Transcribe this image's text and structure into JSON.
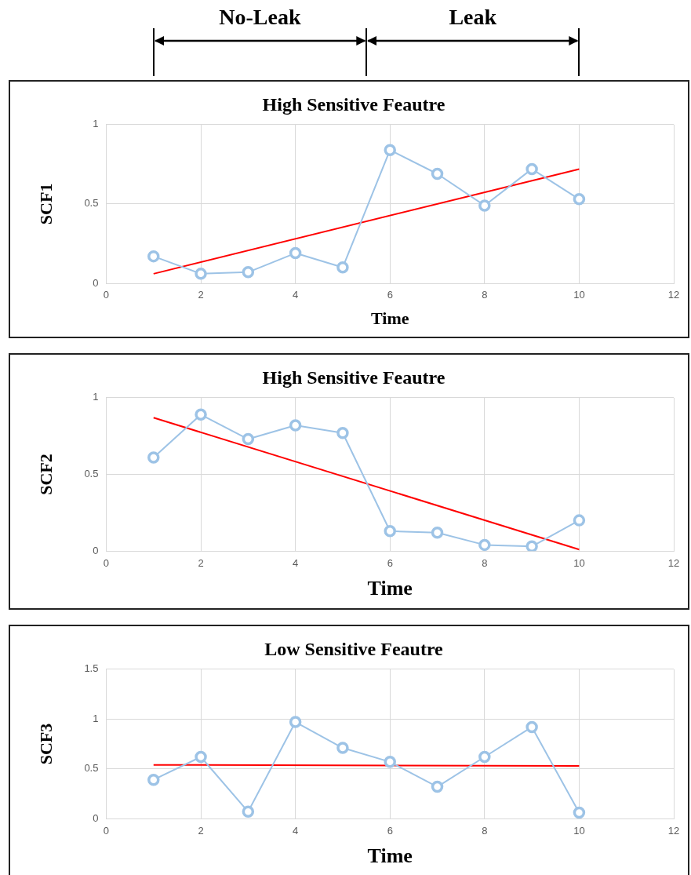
{
  "chart_data": [
    {
      "type": "line",
      "title": "High Sensitive Feautre",
      "xlabel": "Time",
      "ylabel": "SCF1",
      "annotations": [
        "No-Leak",
        "Leak"
      ],
      "xlim": [
        0,
        12
      ],
      "xticks": [
        0,
        2,
        4,
        6,
        8,
        10,
        12
      ],
      "ylim": [
        0,
        1
      ],
      "yticks": [
        0,
        0.5,
        1
      ],
      "grid": true,
      "legend": false,
      "series": [
        {
          "marker": "circle",
          "color": "#9dc3e6",
          "x": [
            1,
            2,
            3,
            4,
            5,
            6,
            7,
            8,
            9,
            10
          ],
          "values": [
            0.17,
            0.06,
            0.07,
            0.19,
            0.1,
            0.84,
            0.69,
            0.49,
            0.72,
            0.53
          ]
        },
        {
          "marker": "none",
          "color": "#ff0000",
          "x": [
            1,
            10
          ],
          "values": [
            0.06,
            0.72
          ]
        }
      ]
    },
    {
      "type": "line",
      "title": "High Sensitive Feautre",
      "xlabel": "Time",
      "ylabel": "SCF2",
      "xlim": [
        0,
        12
      ],
      "xticks": [
        0,
        2,
        4,
        6,
        8,
        10,
        12
      ],
      "ylim": [
        0,
        1
      ],
      "yticks": [
        0,
        0.5,
        1
      ],
      "grid": true,
      "legend": false,
      "series": [
        {
          "marker": "circle",
          "color": "#9dc3e6",
          "x": [
            1,
            2,
            3,
            4,
            5,
            6,
            7,
            8,
            9,
            10
          ],
          "values": [
            0.61,
            0.89,
            0.73,
            0.82,
            0.77,
            0.13,
            0.12,
            0.04,
            0.03,
            0.2
          ]
        },
        {
          "marker": "none",
          "color": "#ff0000",
          "x": [
            1,
            10
          ],
          "values": [
            0.87,
            0.01
          ]
        }
      ]
    },
    {
      "type": "line",
      "title": "Low Sensitive Feautre",
      "xlabel": "Time",
      "ylabel": "SCF3",
      "xlim": [
        0,
        12
      ],
      "xticks": [
        0,
        2,
        4,
        6,
        8,
        10,
        12
      ],
      "ylim": [
        0,
        1.5
      ],
      "yticks": [
        0,
        0.5,
        1,
        1.5
      ],
      "grid": true,
      "legend": false,
      "series": [
        {
          "marker": "circle",
          "color": "#9dc3e6",
          "x": [
            1,
            2,
            3,
            4,
            5,
            6,
            7,
            8,
            9,
            10
          ],
          "values": [
            0.39,
            0.62,
            0.07,
            0.97,
            0.71,
            0.57,
            0.32,
            0.62,
            0.92,
            0.06
          ]
        },
        {
          "marker": "none",
          "color": "#ff0000",
          "x": [
            1,
            10
          ],
          "values": [
            0.54,
            0.53
          ]
        }
      ]
    }
  ]
}
